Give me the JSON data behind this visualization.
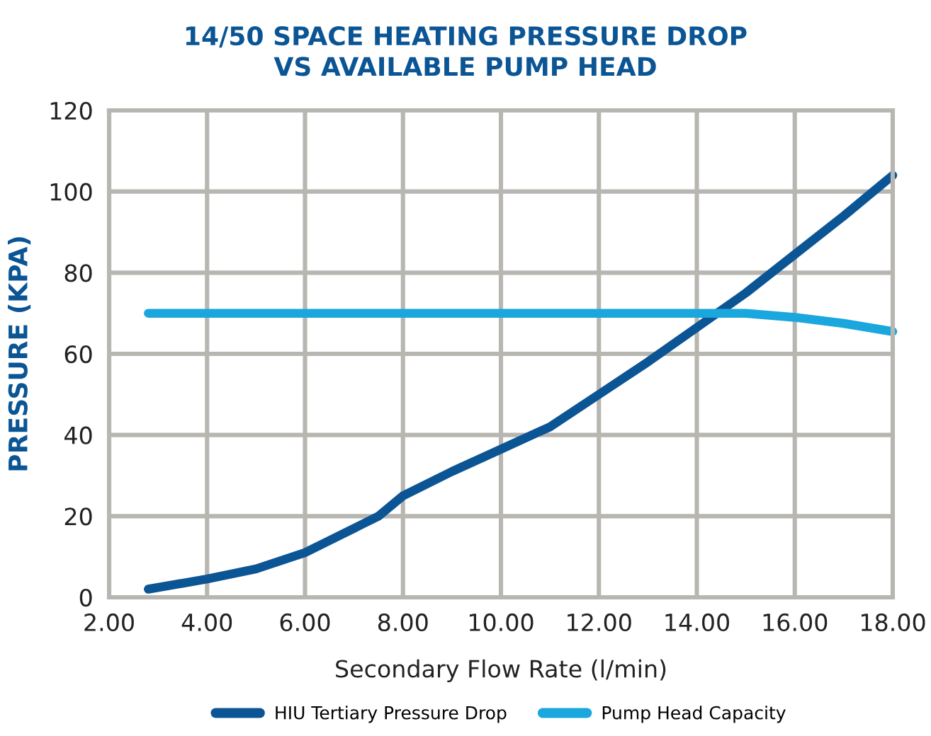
{
  "chart_data": {
    "type": "line",
    "title": "14/50 SPACE HEATING PRESSURE DROP\nVS AVAILABLE PUMP HEAD",
    "xlabel": "Secondary Flow Rate (l/min)",
    "ylabel": "PRESSURE (KPA)",
    "xlim": [
      2,
      18
    ],
    "ylim": [
      0,
      120
    ],
    "xticks": [
      {
        "value": 2,
        "label": "2.00"
      },
      {
        "value": 4,
        "label": "4.00"
      },
      {
        "value": 6,
        "label": "6.00"
      },
      {
        "value": 8,
        "label": "8.00"
      },
      {
        "value": 10,
        "label": "10.00"
      },
      {
        "value": 12,
        "label": "12.00"
      },
      {
        "value": 14,
        "label": "14.00"
      },
      {
        "value": 16,
        "label": "16.00"
      },
      {
        "value": 18,
        "label": "18.00"
      }
    ],
    "yticks": [
      0,
      20,
      40,
      60,
      80,
      100,
      120
    ],
    "grid": true,
    "legend": "bottom",
    "marker": "none",
    "line_style": "solid",
    "series": [
      {
        "name": "HIU Tertiary Pressure Drop",
        "color": "#0b5595",
        "x": [
          2.8,
          4,
          5,
          6,
          7,
          7.5,
          8,
          9,
          10,
          11,
          12,
          13,
          14,
          15,
          16,
          17,
          18
        ],
        "values": [
          2,
          4.5,
          7,
          11,
          17,
          20,
          25,
          31,
          36.5,
          42,
          50,
          58,
          66.5,
          75,
          84.5,
          94,
          104
        ]
      },
      {
        "name": "Pump Head Capacity",
        "color": "#1aa7dd",
        "x": [
          2.8,
          15,
          16,
          17,
          18
        ],
        "values": [
          70,
          70,
          69,
          67.5,
          65.5
        ]
      }
    ]
  }
}
